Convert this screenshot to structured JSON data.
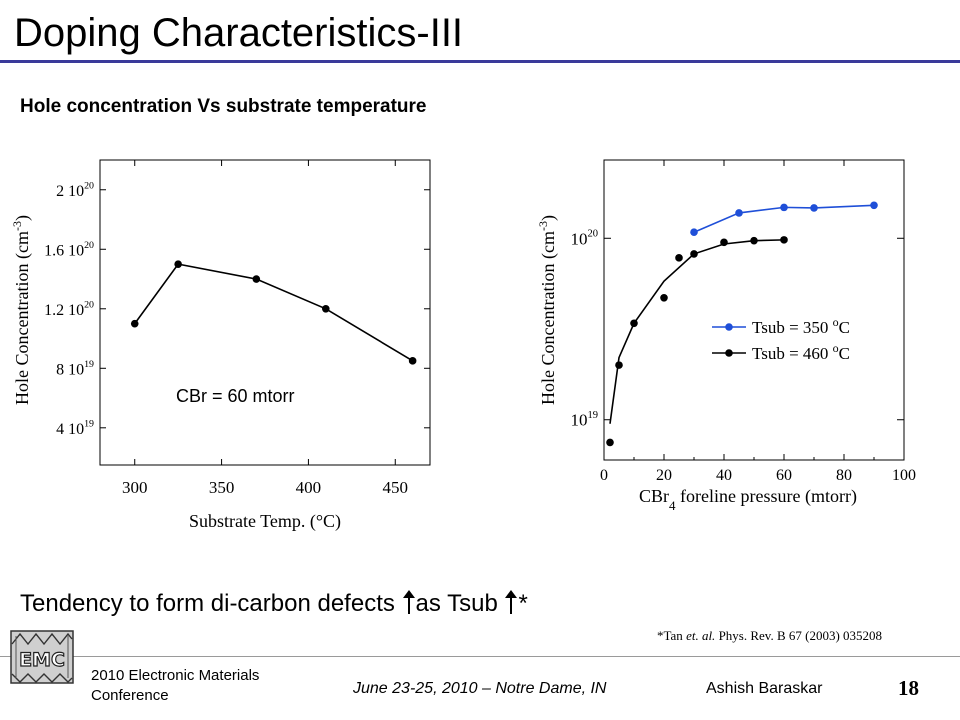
{
  "slide": {
    "title": "Doping Characteristics-III",
    "subtitle": "Hole concentration Vs substrate temperature",
    "tendency": {
      "part1": "Tendency to form di-carbon defects ",
      "part2": "as Tsub ",
      "part3": "*"
    },
    "citation": {
      "authors": "*Tan ",
      "etal": "et. al.",
      "journal": " Phys. Rev. B 67 (2003) 035208"
    },
    "footer": {
      "conference_line1": "2010 Electronic Materials",
      "conference_line2": "Conference",
      "date_location": "June 23-25,  2010 – Notre Dame, IN",
      "author": "Ashish Baraskar",
      "slide_number": "18",
      "logo_text": "EMC"
    },
    "colors": {
      "title_rule": "#3a3a9a",
      "series_blue": "#1f4fd8",
      "series_black": "#000000"
    }
  },
  "chart_data": [
    {
      "type": "line",
      "xlabel": "Substrate Temp. (°C)",
      "ylabel": "Hole Concentration (cm-3)",
      "annotation": "CBr = 60 mtorr",
      "x_ticks": [
        "300",
        "350",
        "400",
        "450"
      ],
      "y_ticks": [
        "4 10^19",
        "8 10^19",
        "1.2 10^20",
        "1.6 10^20",
        "2 10^20"
      ],
      "xlim": [
        280,
        470
      ],
      "ylim": [
        1.5e+19,
        2.2e+20
      ],
      "series": [
        {
          "x": [
            300,
            325,
            370,
            410,
            460
          ],
          "y": [
            1.1e+20,
            1.5e+20,
            1.4e+20,
            1.2e+20,
            8.5e+19
          ]
        }
      ]
    },
    {
      "type": "line",
      "xlabel": "CBr4 foreline pressure (mtorr)",
      "ylabel": "Hole Concentration (cm-3)",
      "y_scale": "log",
      "x_ticks": [
        "0",
        "20",
        "40",
        "60",
        "80",
        "100"
      ],
      "y_ticks": [
        "10^19",
        "10^20"
      ],
      "xlim": [
        0,
        100
      ],
      "ylim": [
        6e+18,
        2.7e+20
      ],
      "legend_position": "right",
      "series": [
        {
          "name": "Tsub = 350 oC",
          "color": "#1f4fd8",
          "x": [
            30,
            45,
            60,
            70,
            90
          ],
          "y": [
            1.08e+20,
            1.38e+20,
            1.48e+20,
            1.47e+20,
            1.52e+20
          ]
        },
        {
          "name": "Tsub = 460 oC",
          "color": "#000000",
          "x": [
            2,
            5,
            10,
            20,
            25,
            30,
            40,
            50,
            60
          ],
          "y": [
            7.5e+18,
            2e+19,
            3.4e+19,
            4.7e+19,
            7.8e+19,
            8.2e+19,
            9.5e+19,
            9.7e+19,
            9.8e+19
          ],
          "fit_x": [
            2,
            5,
            10,
            20,
            30,
            40,
            50,
            60
          ],
          "fit_y": [
            9.5e+18,
            2.2e+19,
            3.4e+19,
            5.8e+19,
            8.2e+19,
            9.3e+19,
            9.7e+19,
            9.8e+19
          ]
        }
      ]
    }
  ]
}
